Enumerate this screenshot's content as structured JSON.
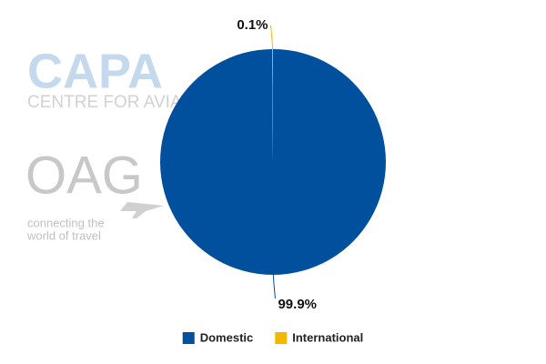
{
  "chart_data": {
    "type": "pie",
    "categories": [
      "Domestic",
      "International"
    ],
    "values": [
      99.9,
      0.1
    ],
    "value_labels": [
      "99.9%",
      "0.1%"
    ],
    "colors": [
      "#00509e",
      "#f5b800"
    ],
    "legend": "bottom"
  },
  "watermarks": {
    "capa": "CAPA",
    "capa_sub": "CENTRE FOR AVIATION",
    "oag": "OAG",
    "oag_line1": "connecting the",
    "oag_line2": "world of travel"
  }
}
